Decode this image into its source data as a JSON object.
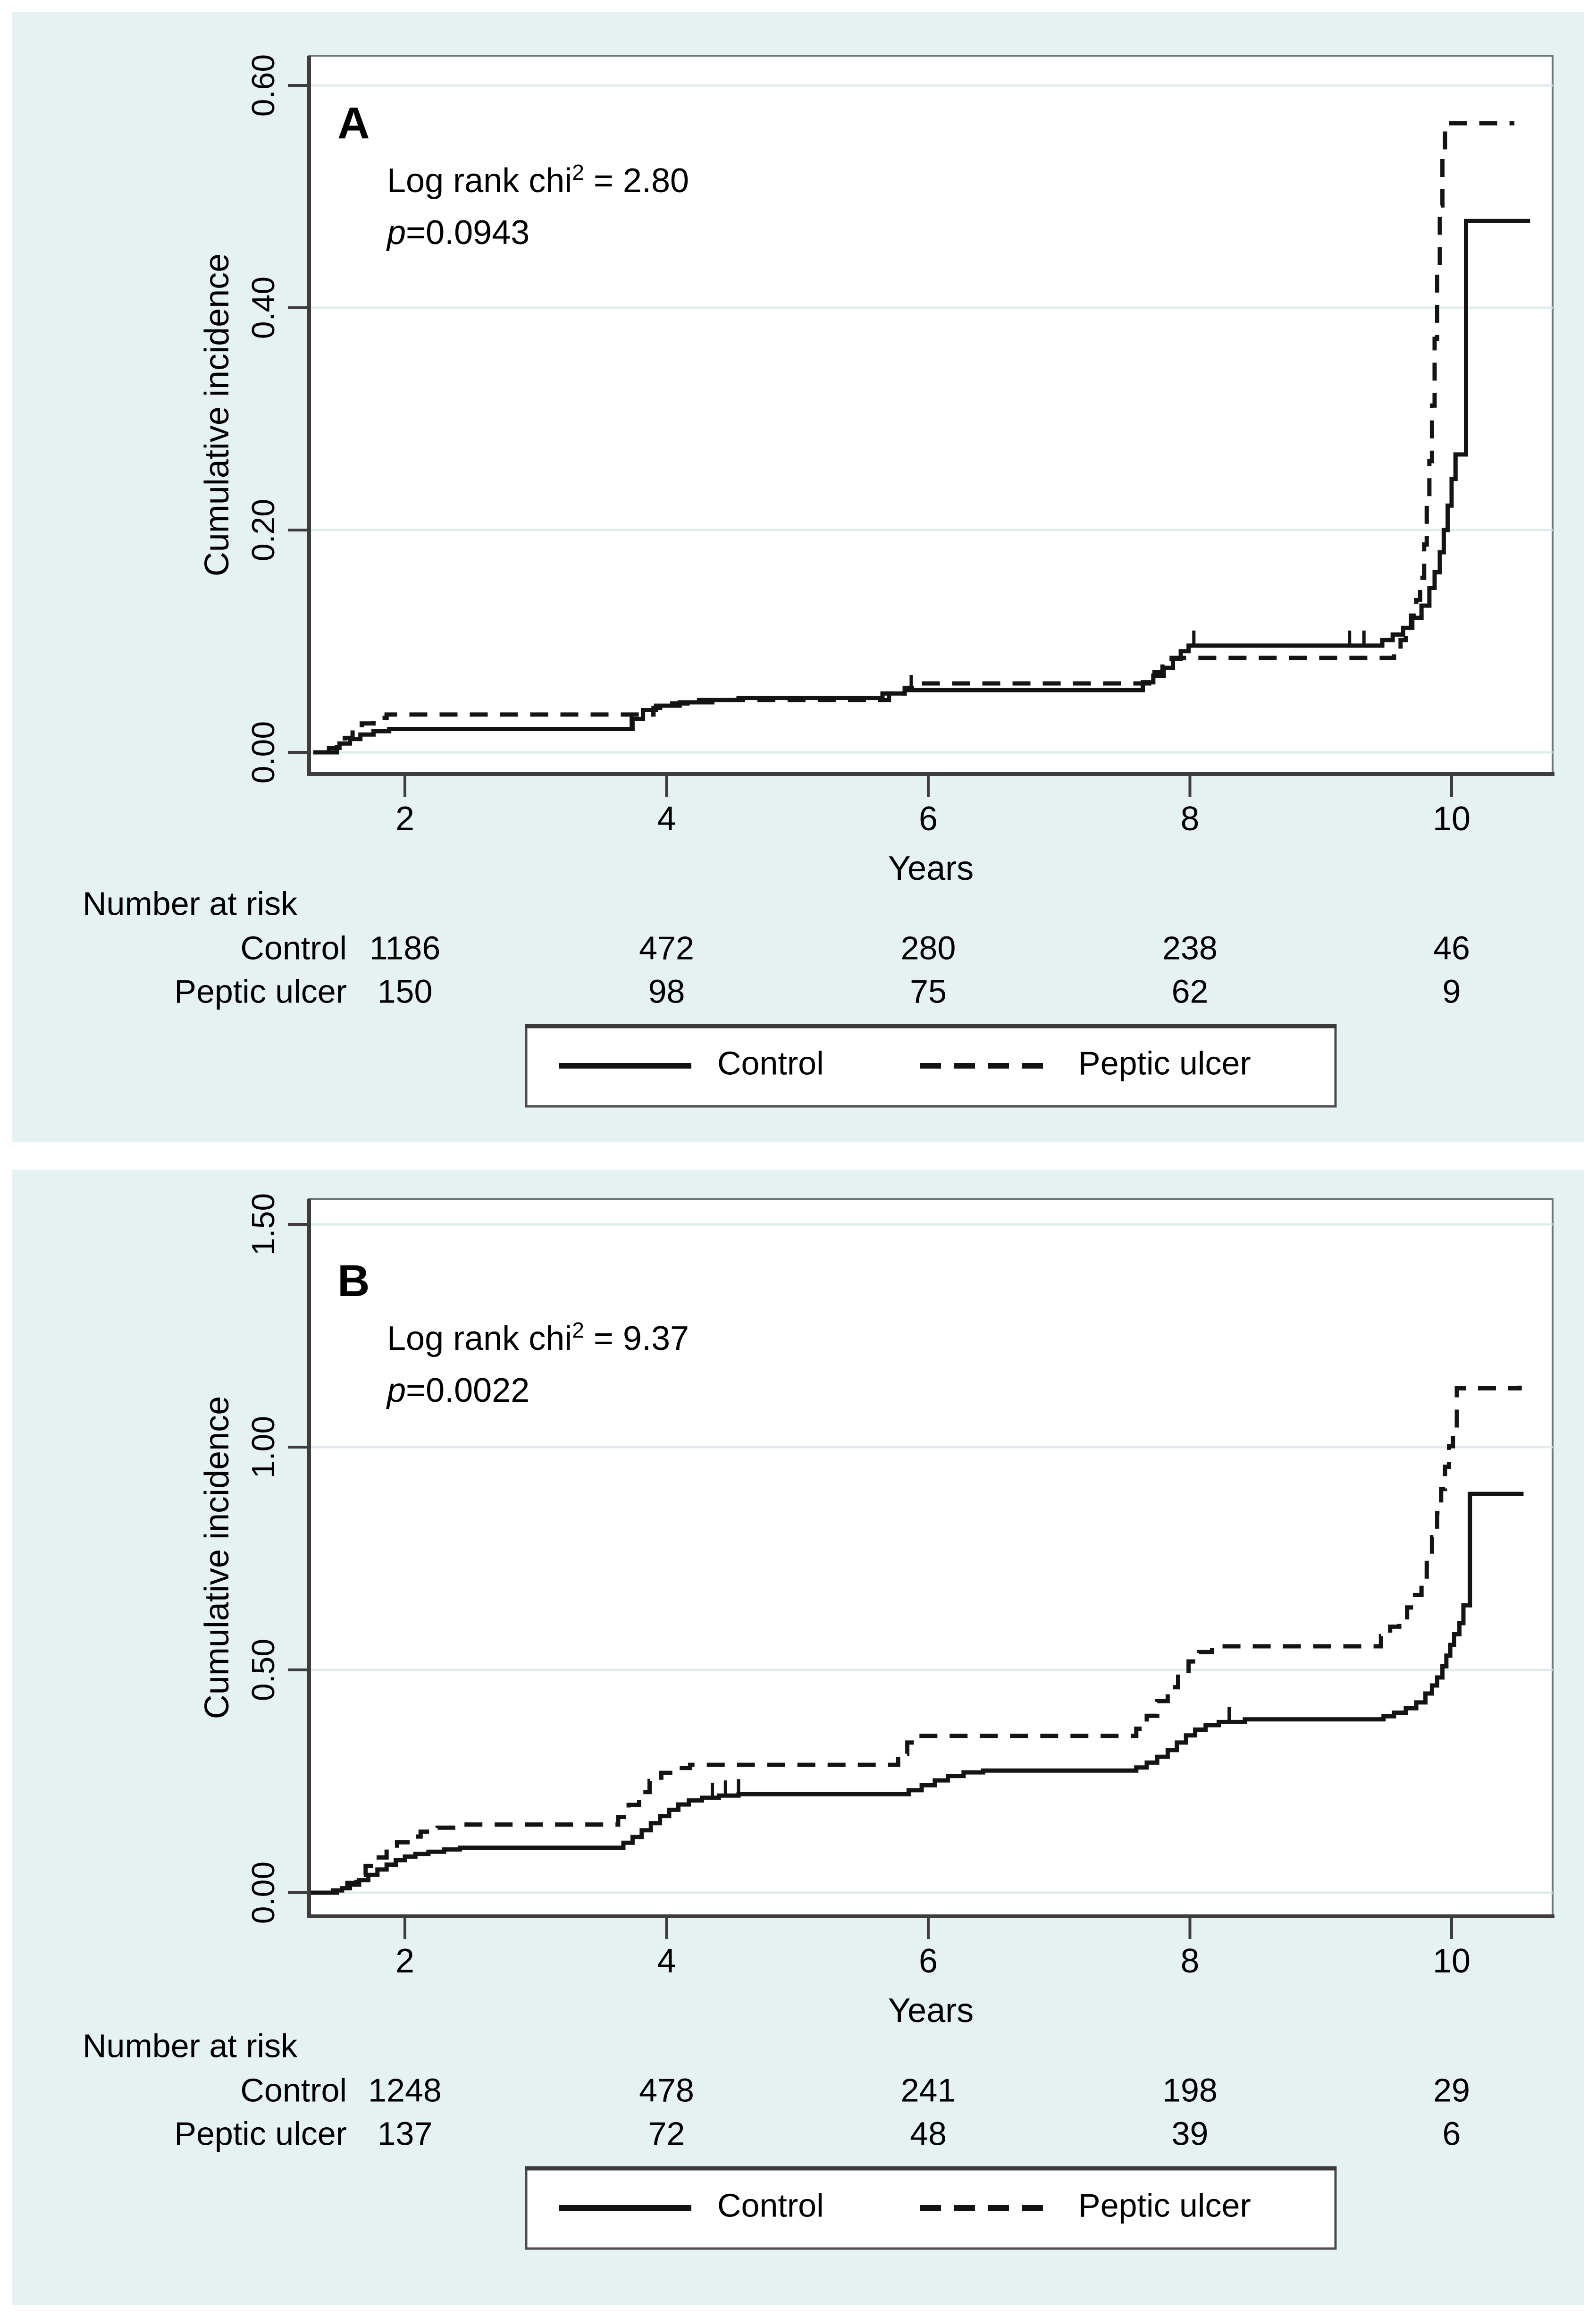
{
  "page": {
    "bg": "#ffffff",
    "panel_bg": "#e6f1f1",
    "plot_bg": "#ffffff",
    "grid_color": "#ddeded",
    "axis_color": "#3d3d3d",
    "plot_border_color": "#6b7878",
    "line_color": "#141414"
  },
  "y_axis_title": "Cumulative incidence",
  "x_axis_title": "Years",
  "legend": {
    "items": [
      {
        "label": "Control",
        "line": "solid"
      },
      {
        "label": "Peptic ulcer",
        "line": "dashed"
      }
    ]
  },
  "chart_data": [
    {
      "id": "A",
      "type": "line",
      "subtype": "step",
      "panel_label": "A",
      "annotation": {
        "stat_prefix": "Log rank chi",
        "stat_sup": "2",
        "stat_suffix": " = 2.80",
        "p_label": "p",
        "p_value": "=0.0943"
      },
      "xlabel": "Years",
      "ylabel": "Cumulative incidence",
      "x_ticks": [
        2,
        4,
        6,
        8,
        10
      ],
      "y_ticks": [
        {
          "label": "0.00",
          "value": 0
        },
        {
          "label": "0.20",
          "value": 0.2
        },
        {
          "label": "0.40",
          "value": 0.4
        },
        {
          "label": "0.60",
          "value": 0.6
        }
      ],
      "xlim": [
        1.27,
        10.77
      ],
      "ylim": [
        -0.02,
        0.63
      ],
      "grid": true,
      "legend_position": "bottom",
      "series": [
        {
          "name": "Control",
          "style": "solid",
          "points": [
            [
              1.3,
              0
            ],
            [
              1.42,
              0.004
            ],
            [
              1.5,
              0.008
            ],
            [
              1.58,
              0.012
            ],
            [
              1.66,
              0.016
            ],
            [
              1.76,
              0.019
            ],
            [
              1.88,
              0.021
            ],
            [
              3.68,
              0.021
            ],
            [
              3.74,
              0.03
            ],
            [
              3.82,
              0.038
            ],
            [
              3.92,
              0.042
            ],
            [
              4.1,
              0.045
            ],
            [
              4.35,
              0.047
            ],
            [
              4.55,
              0.049
            ],
            [
              5.58,
              0.049
            ],
            [
              5.65,
              0.053
            ],
            [
              5.82,
              0.056
            ],
            [
              7.55,
              0.056
            ],
            [
              7.64,
              0.063
            ],
            [
              7.72,
              0.069
            ],
            [
              7.8,
              0.076
            ],
            [
              7.87,
              0.084
            ],
            [
              7.93,
              0.091
            ],
            [
              7.99,
              0.096
            ],
            [
              9.4,
              0.096
            ],
            [
              9.47,
              0.101
            ],
            [
              9.55,
              0.106
            ],
            [
              9.63,
              0.112
            ],
            [
              9.7,
              0.121
            ],
            [
              9.77,
              0.132
            ],
            [
              9.83,
              0.148
            ],
            [
              9.87,
              0.162
            ],
            [
              9.91,
              0.18
            ],
            [
              9.94,
              0.2
            ],
            [
              9.97,
              0.222
            ],
            [
              10.0,
              0.246
            ],
            [
              10.03,
              0.268
            ],
            [
              10.11,
              0.268
            ],
            [
              10.11,
              0.478
            ],
            [
              10.6,
              0.478
            ]
          ]
        },
        {
          "name": "Peptic ulcer",
          "style": "dashed",
          "points": [
            [
              1.4,
              0
            ],
            [
              1.48,
              0.007
            ],
            [
              1.54,
              0.013
            ],
            [
              1.6,
              0.02
            ],
            [
              1.67,
              0.026
            ],
            [
              1.76,
              0.031
            ],
            [
              1.86,
              0.034
            ],
            [
              3.8,
              0.034
            ],
            [
              3.9,
              0.04
            ],
            [
              4.02,
              0.044
            ],
            [
              4.16,
              0.047
            ],
            [
              5.6,
              0.047
            ],
            [
              5.7,
              0.053
            ],
            [
              5.82,
              0.058
            ],
            [
              5.95,
              0.062
            ],
            [
              7.62,
              0.062
            ],
            [
              7.71,
              0.072
            ],
            [
              7.79,
              0.08
            ],
            [
              7.86,
              0.085
            ],
            [
              9.5,
              0.085
            ],
            [
              9.56,
              0.093
            ],
            [
              9.61,
              0.101
            ],
            [
              9.65,
              0.111
            ],
            [
              9.69,
              0.123
            ],
            [
              9.73,
              0.137
            ],
            [
              9.76,
              0.157
            ],
            [
              9.79,
              0.187
            ],
            [
              9.81,
              0.222
            ],
            [
              9.83,
              0.262
            ],
            [
              9.85,
              0.312
            ],
            [
              9.87,
              0.372
            ],
            [
              9.89,
              0.432
            ],
            [
              9.91,
              0.492
            ],
            [
              9.93,
              0.537
            ],
            [
              9.95,
              0.566
            ],
            [
              10.48,
              0.566
            ]
          ]
        }
      ],
      "censor_ticks": {
        "Control": [
          3.73,
          5.87,
          8.03,
          9.22,
          9.33
        ],
        "Peptic ulcer": []
      },
      "number_at_risk": {
        "title": "Number at risk",
        "times": [
          2,
          4,
          6,
          8,
          10
        ],
        "rows": [
          {
            "label": "Control",
            "values": [
              "1186",
              "472",
              "280",
              "238",
              "46"
            ]
          },
          {
            "label": "Peptic ulcer",
            "values": [
              "150",
              "98",
              "75",
              "62",
              "9"
            ]
          }
        ]
      }
    },
    {
      "id": "B",
      "type": "line",
      "subtype": "step",
      "panel_label": "B",
      "annotation": {
        "stat_prefix": "Log rank chi",
        "stat_sup": "2",
        "stat_suffix": " = 9.37",
        "p_label": "p",
        "p_value": "=0.0022"
      },
      "xlabel": "Years",
      "ylabel": "Cumulative incidence",
      "x_ticks": [
        2,
        4,
        6,
        8,
        10
      ],
      "y_ticks": [
        {
          "label": "0.00",
          "value": 0
        },
        {
          "label": "0.50",
          "value": 0.5
        },
        {
          "label": "1.00",
          "value": 1.0
        },
        {
          "label": "1.50",
          "value": 1.5
        }
      ],
      "xlim": [
        1.27,
        10.77
      ],
      "ylim": [
        -0.05,
        1.56
      ],
      "grid": true,
      "legend_position": "bottom",
      "series": [
        {
          "name": "Control",
          "style": "solid",
          "points": [
            [
              1.28,
              0
            ],
            [
              1.45,
              0.005
            ],
            [
              1.52,
              0.01
            ],
            [
              1.58,
              0.018
            ],
            [
              1.65,
              0.028
            ],
            [
              1.72,
              0.04
            ],
            [
              1.79,
              0.052
            ],
            [
              1.86,
              0.063
            ],
            [
              1.93,
              0.073
            ],
            [
              2.0,
              0.081
            ],
            [
              2.08,
              0.087
            ],
            [
              2.18,
              0.092
            ],
            [
              2.3,
              0.097
            ],
            [
              2.42,
              0.101
            ],
            [
              3.6,
              0.101
            ],
            [
              3.67,
              0.112
            ],
            [
              3.74,
              0.125
            ],
            [
              3.81,
              0.14
            ],
            [
              3.88,
              0.156
            ],
            [
              3.95,
              0.172
            ],
            [
              4.02,
              0.186
            ],
            [
              4.09,
              0.198
            ],
            [
              4.17,
              0.207
            ],
            [
              4.27,
              0.213
            ],
            [
              4.4,
              0.218
            ],
            [
              4.55,
              0.221
            ],
            [
              5.75,
              0.221
            ],
            [
              5.85,
              0.23
            ],
            [
              5.95,
              0.241
            ],
            [
              6.05,
              0.252
            ],
            [
              6.15,
              0.262
            ],
            [
              6.27,
              0.27
            ],
            [
              6.42,
              0.274
            ],
            [
              7.5,
              0.274
            ],
            [
              7.59,
              0.281
            ],
            [
              7.67,
              0.292
            ],
            [
              7.75,
              0.305
            ],
            [
              7.83,
              0.32
            ],
            [
              7.9,
              0.337
            ],
            [
              7.97,
              0.353
            ],
            [
              8.04,
              0.366
            ],
            [
              8.12,
              0.376
            ],
            [
              8.22,
              0.383
            ],
            [
              8.42,
              0.389
            ],
            [
              9.4,
              0.389
            ],
            [
              9.48,
              0.396
            ],
            [
              9.56,
              0.404
            ],
            [
              9.65,
              0.414
            ],
            [
              9.73,
              0.427
            ],
            [
              9.8,
              0.447
            ],
            [
              9.85,
              0.465
            ],
            [
              9.89,
              0.483
            ],
            [
              9.93,
              0.508
            ],
            [
              9.96,
              0.532
            ],
            [
              9.99,
              0.556
            ],
            [
              10.02,
              0.58
            ],
            [
              10.06,
              0.605
            ],
            [
              10.09,
              0.645
            ],
            [
              10.14,
              0.645
            ],
            [
              10.14,
              0.895
            ],
            [
              10.55,
              0.895
            ]
          ]
        },
        {
          "name": "Peptic ulcer",
          "style": "dashed",
          "points": [
            [
              1.36,
              0
            ],
            [
              1.48,
              0.01
            ],
            [
              1.56,
              0.022
            ],
            [
              1.63,
              0.04
            ],
            [
              1.7,
              0.06
            ],
            [
              1.78,
              0.079
            ],
            [
              1.86,
              0.097
            ],
            [
              1.94,
              0.113
            ],
            [
              2.02,
              0.126
            ],
            [
              2.12,
              0.137
            ],
            [
              2.25,
              0.146
            ],
            [
              2.42,
              0.153
            ],
            [
              3.55,
              0.153
            ],
            [
              3.63,
              0.17
            ],
            [
              3.71,
              0.197
            ],
            [
              3.79,
              0.226
            ],
            [
              3.87,
              0.251
            ],
            [
              3.96,
              0.269
            ],
            [
              4.06,
              0.28
            ],
            [
              4.18,
              0.287
            ],
            [
              5.7,
              0.287
            ],
            [
              5.77,
              0.312
            ],
            [
              5.84,
              0.337
            ],
            [
              5.92,
              0.352
            ],
            [
              7.5,
              0.352
            ],
            [
              7.59,
              0.368
            ],
            [
              7.67,
              0.397
            ],
            [
              7.75,
              0.43
            ],
            [
              7.83,
              0.461
            ],
            [
              7.91,
              0.491
            ],
            [
              7.99,
              0.519
            ],
            [
              8.07,
              0.54
            ],
            [
              8.17,
              0.553
            ],
            [
              9.38,
              0.553
            ],
            [
              9.46,
              0.576
            ],
            [
              9.53,
              0.597
            ],
            [
              9.6,
              0.618
            ],
            [
              9.66,
              0.64
            ],
            [
              9.72,
              0.668
            ],
            [
              9.77,
              0.703
            ],
            [
              9.81,
              0.748
            ],
            [
              9.85,
              0.798
            ],
            [
              9.89,
              0.852
            ],
            [
              9.92,
              0.906
            ],
            [
              9.95,
              0.956
            ],
            [
              9.98,
              1.002
            ],
            [
              10.01,
              1.042
            ],
            [
              10.04,
              1.042
            ],
            [
              10.04,
              1.132
            ],
            [
              10.52,
              1.138
            ]
          ]
        }
      ],
      "censor_ticks": {
        "Control": [
          4.35,
          4.45,
          4.55,
          8.3
        ],
        "Peptic ulcer": []
      },
      "number_at_risk": {
        "title": "Number at risk",
        "times": [
          2,
          4,
          6,
          8,
          10
        ],
        "rows": [
          {
            "label": "Control",
            "values": [
              "1248",
              "478",
              "241",
              "198",
              "29"
            ]
          },
          {
            "label": "Peptic ulcer",
            "values": [
              "137",
              "72",
              "48",
              "39",
              "6"
            ]
          }
        ]
      }
    }
  ]
}
